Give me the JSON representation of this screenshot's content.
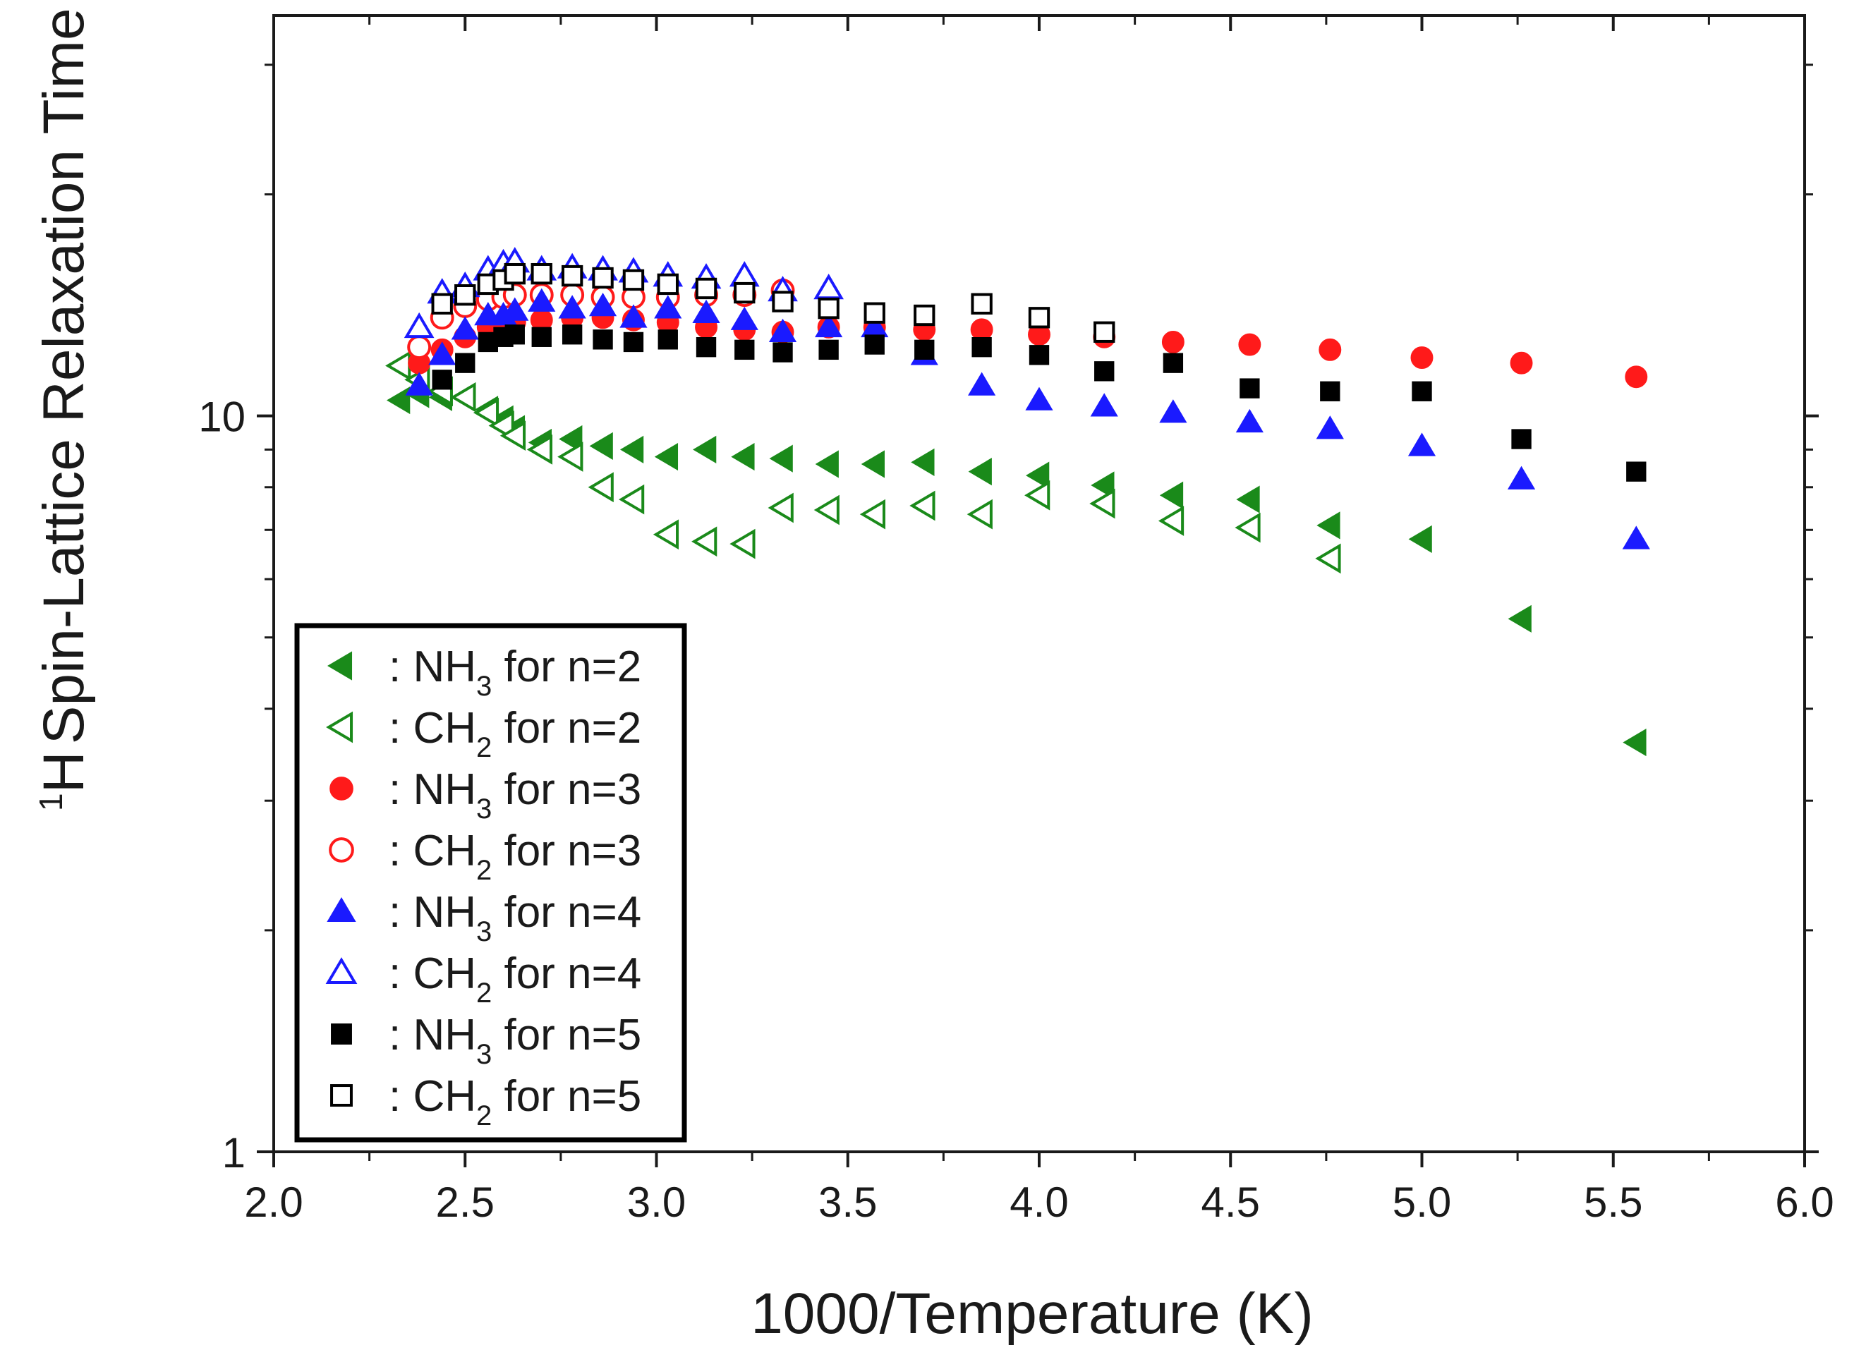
{
  "chart_data": {
    "type": "scatter",
    "title": "",
    "xlabel": "1000/Temperature (K)",
    "ylabel": "Spin-Lattice Relaxation Time (ms)",
    "ylabel_sup": "1",
    "ylabel_nucleus": "H",
    "xlim": [
      2.0,
      6.0
    ],
    "ylim": [
      1,
      35
    ],
    "yscale": "log",
    "x_ticks": [
      "2.0",
      "2.5",
      "3.0",
      "3.5",
      "4.0",
      "4.5",
      "5.0",
      "5.5",
      "6.0"
    ],
    "y_ticks": [
      "1",
      "10"
    ],
    "legend_position": "bottom-left",
    "series": [
      {
        "name": ": NH3 for n=2",
        "legend_prefix": ": NH",
        "legend_sub": "3",
        "legend_suffix": " for n=2",
        "marker": "triangle-left",
        "filled": true,
        "color": "#1a8a1a",
        "x": [
          2.33,
          2.38,
          2.44,
          2.56,
          2.6,
          2.63,
          2.7,
          2.78,
          2.86,
          2.94,
          3.03,
          3.13,
          3.23,
          3.33,
          3.45,
          3.57,
          3.7,
          3.85,
          4.0,
          4.17,
          4.35,
          4.55,
          4.76,
          5.0,
          5.26,
          5.56
        ],
        "y": [
          10.5,
          10.7,
          10.6,
          10.2,
          9.9,
          9.6,
          9.2,
          9.3,
          9.1,
          9.0,
          8.8,
          9.0,
          8.8,
          8.75,
          8.6,
          8.6,
          8.65,
          8.4,
          8.3,
          8.05,
          7.8,
          7.7,
          7.1,
          6.8,
          5.3,
          3.6
        ]
      },
      {
        "name": ": CH2 for n=2",
        "legend_prefix": ": CH",
        "legend_sub": "2",
        "legend_suffix": " for n=2",
        "marker": "triangle-left",
        "filled": false,
        "color": "#1a8a1a",
        "x": [
          2.33,
          2.38,
          2.44,
          2.5,
          2.56,
          2.6,
          2.63,
          2.7,
          2.78,
          2.86,
          2.94,
          3.03,
          3.13,
          3.23,
          3.33,
          3.45,
          3.57,
          3.7,
          3.85,
          4.0,
          4.17,
          4.35,
          4.55,
          4.76
        ],
        "y": [
          11.7,
          11.2,
          10.8,
          10.6,
          10.1,
          9.7,
          9.4,
          9.0,
          8.8,
          8.0,
          7.7,
          6.9,
          6.75,
          6.7,
          7.5,
          7.45,
          7.35,
          7.55,
          7.35,
          7.8,
          7.6,
          7.2,
          7.05,
          6.4
        ]
      },
      {
        "name": ": NH3 for n=3",
        "legend_prefix": ": NH",
        "legend_sub": "3",
        "legend_suffix": " for n=3",
        "marker": "circle",
        "filled": true,
        "color": "#ff1a1a",
        "x": [
          2.38,
          2.44,
          2.5,
          2.56,
          2.6,
          2.63,
          2.7,
          2.78,
          2.86,
          2.94,
          3.03,
          3.13,
          3.23,
          3.33,
          3.45,
          3.57,
          3.7,
          3.85,
          4.0,
          4.17,
          4.35,
          4.55,
          4.76,
          5.0,
          5.26,
          5.56
        ],
        "y": [
          11.8,
          12.3,
          12.8,
          13.2,
          13.3,
          13.4,
          13.5,
          13.6,
          13.6,
          13.5,
          13.4,
          13.2,
          13.1,
          13.0,
          13.2,
          13.2,
          13.1,
          13.1,
          12.9,
          12.8,
          12.6,
          12.5,
          12.3,
          12.0,
          11.8,
          11.3
        ]
      },
      {
        "name": ": CH2 for n=3",
        "legend_prefix": ": CH",
        "legend_sub": "2",
        "legend_suffix": " for n=3",
        "marker": "circle",
        "filled": false,
        "color": "#ff1a1a",
        "x": [
          2.38,
          2.44,
          2.5,
          2.56,
          2.6,
          2.63,
          2.7,
          2.78,
          2.86,
          2.94,
          3.03,
          3.13,
          3.23,
          3.33
        ],
        "y": [
          12.4,
          13.6,
          14.1,
          14.4,
          14.5,
          14.6,
          14.6,
          14.6,
          14.5,
          14.5,
          14.5,
          14.6,
          14.6,
          14.8
        ]
      },
      {
        "name": ": NH3 for n=4",
        "legend_prefix": ": NH",
        "legend_sub": "3",
        "legend_suffix": " for n=4",
        "marker": "triangle-up",
        "filled": true,
        "color": "#1a1aff",
        "x": [
          2.38,
          2.44,
          2.5,
          2.56,
          2.6,
          2.63,
          2.7,
          2.78,
          2.86,
          2.94,
          3.03,
          3.13,
          3.23,
          3.33,
          3.45,
          3.57,
          3.7,
          3.85,
          4.0,
          4.17,
          4.35,
          4.55,
          4.76,
          5.0,
          5.26,
          5.56
        ],
        "y": [
          11.0,
          12.1,
          13.1,
          13.7,
          13.7,
          13.9,
          14.3,
          14.0,
          14.1,
          13.6,
          14.0,
          13.8,
          13.5,
          13.0,
          13.2,
          13.2,
          12.1,
          11.0,
          10.5,
          10.3,
          10.1,
          9.8,
          9.6,
          9.1,
          8.2,
          6.8
        ]
      },
      {
        "name": ": CH2 for n=4",
        "legend_prefix": ": CH",
        "legend_sub": "2",
        "legend_suffix": " for n=4",
        "marker": "triangle-up",
        "filled": false,
        "color": "#1a1aff",
        "x": [
          2.38,
          2.44,
          2.5,
          2.56,
          2.6,
          2.63,
          2.7,
          2.78,
          2.86,
          2.94,
          3.03,
          3.13,
          3.23,
          3.33,
          3.45
        ],
        "y": [
          13.2,
          14.7,
          15.0,
          15.8,
          16.1,
          16.2,
          15.8,
          15.9,
          15.8,
          15.7,
          15.5,
          15.4,
          15.5,
          14.8,
          14.9
        ]
      },
      {
        "name": ": NH3 for n=5",
        "legend_prefix": ": NH",
        "legend_sub": "3",
        "legend_suffix": " for n=5",
        "marker": "square",
        "filled": true,
        "color": "#000000",
        "x": [
          2.44,
          2.5,
          2.56,
          2.6,
          2.63,
          2.7,
          2.78,
          2.86,
          2.94,
          3.03,
          3.13,
          3.23,
          3.33,
          3.45,
          3.57,
          3.7,
          3.85,
          4.0,
          4.17,
          4.35,
          4.55,
          4.76,
          5.0,
          5.26,
          5.56
        ],
        "y": [
          11.2,
          11.8,
          12.6,
          12.8,
          12.9,
          12.8,
          12.9,
          12.7,
          12.6,
          12.7,
          12.4,
          12.3,
          12.2,
          12.3,
          12.5,
          12.3,
          12.4,
          12.1,
          11.5,
          11.8,
          10.9,
          10.8,
          10.8,
          9.3,
          8.4
        ]
      },
      {
        "name": ": CH2 for n=5",
        "legend_prefix": ": CH",
        "legend_sub": "2",
        "legend_suffix": " for n=5",
        "marker": "square",
        "filled": false,
        "color": "#000000",
        "x": [
          2.44,
          2.5,
          2.56,
          2.6,
          2.63,
          2.7,
          2.78,
          2.86,
          2.94,
          3.03,
          3.13,
          3.23,
          3.33,
          3.45,
          3.57,
          3.7,
          3.85,
          4.0,
          4.17
        ],
        "y": [
          14.2,
          14.6,
          15.1,
          15.3,
          15.6,
          15.6,
          15.5,
          15.4,
          15.3,
          15.1,
          14.9,
          14.7,
          14.3,
          14.0,
          13.8,
          13.7,
          14.2,
          13.6,
          13.0
        ]
      }
    ]
  }
}
